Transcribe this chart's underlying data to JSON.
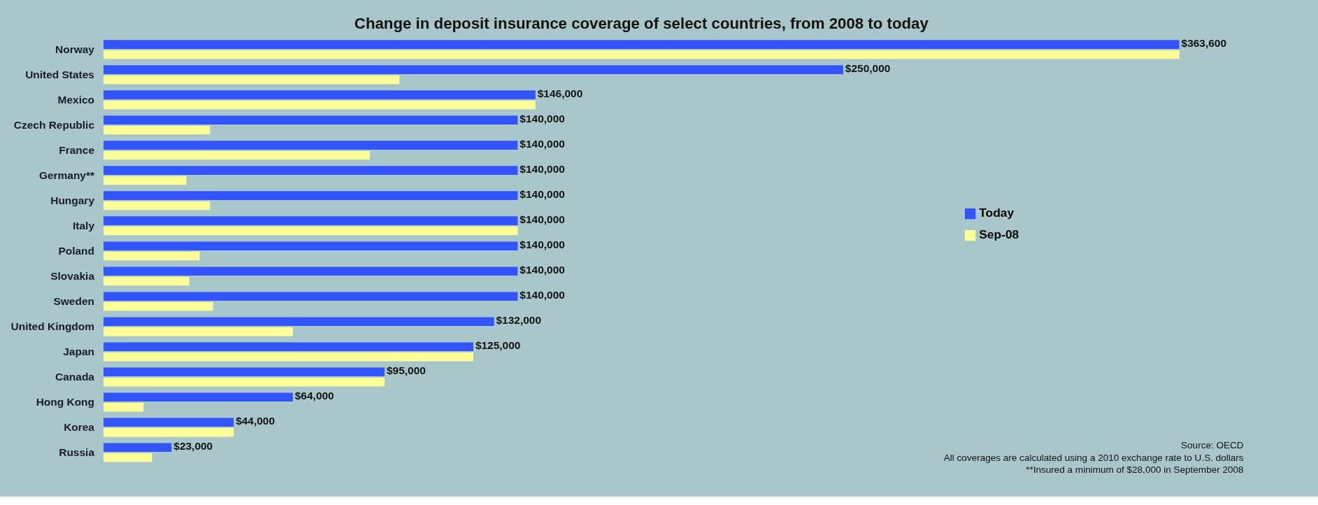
{
  "chart_data": {
    "type": "bar",
    "orientation": "horizontal",
    "title": "Change in deposit insurance coverage of select countries, from 2008 to today",
    "categories": [
      "Norway",
      "United States",
      "Mexico",
      "Czech Republic",
      "France",
      "Germany**",
      "Hungary",
      "Italy",
      "Poland",
      "Slovakia",
      "Sweden",
      "United Kingdom",
      "Japan",
      "Canada",
      "Hong Kong",
      "Korea",
      "Russia"
    ],
    "series": [
      {
        "name": "Today",
        "color": "#3355ff",
        "values": [
          363600,
          250000,
          146000,
          140000,
          140000,
          140000,
          140000,
          140000,
          140000,
          140000,
          140000,
          132000,
          125000,
          95000,
          64000,
          44000,
          23000
        ],
        "value_labels": [
          "$363,600",
          "$250,000",
          "$146,000",
          "$140,000",
          "$140,000",
          "$140,000",
          "$140,000",
          "$140,000",
          "$140,000",
          "$140,000",
          "$140,000",
          "$132,000",
          "$125,000",
          "$95,000",
          "$64,000",
          "$44,000",
          "$23,000"
        ]
      },
      {
        "name": "Sep-08",
        "color": "#ffff99",
        "values": [
          363600,
          100000,
          146000,
          36000,
          90000,
          28000,
          36000,
          140000,
          32500,
          29000,
          37000,
          64000,
          125000,
          95000,
          13500,
          44000,
          16400
        ]
      }
    ],
    "legend": "right",
    "annotations": [
      "Source: OECD",
      "All coverages are calculated using a 2010 exchange rate to U.S. dollars",
      "**Insured a minimum of $28,000 in September 2008"
    ]
  }
}
